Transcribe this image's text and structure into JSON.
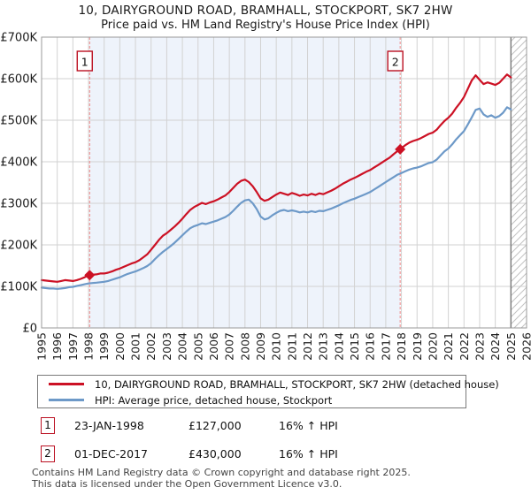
{
  "chart_data": {
    "type": "line",
    "title": "10, DAIRYGROUND ROAD, BRAMHALL, STOCKPORT, SK7 2HW",
    "subtitle": "Price paid vs. HM Land Registry's House Price Index (HPI)",
    "x_min": 1995,
    "x_max": 2026,
    "ylim": [
      0,
      700
    ],
    "unit": "GBP thousands",
    "grid": true,
    "legend_position": "bottom",
    "y_ticks": [
      [
        0,
        "£0"
      ],
      [
        100,
        "£100K"
      ],
      [
        200,
        "£200K"
      ],
      [
        300,
        "£300K"
      ],
      [
        400,
        "£400K"
      ],
      [
        500,
        "£500K"
      ],
      [
        600,
        "£600K"
      ],
      [
        700,
        "£700K"
      ]
    ],
    "x_ticks": [
      1995,
      1996,
      1997,
      1998,
      1999,
      2000,
      2001,
      2002,
      2003,
      2004,
      2005,
      2006,
      2007,
      2008,
      2009,
      2010,
      2011,
      2012,
      2013,
      2014,
      2015,
      2016,
      2017,
      2018,
      2019,
      2020,
      2021,
      2022,
      2023,
      2024,
      2025,
      2026
    ],
    "shaded_span": [
      1998.07,
      2017.92
    ],
    "hatch_span": [
      2025,
      2026
    ],
    "series": [
      {
        "name": "10, DAIRYGROUND ROAD, BRAMHALL, STOCKPORT, SK7 2HW (detached house)",
        "color": "#cc1124",
        "x_start": 1995,
        "x_step": 0.25,
        "values": [
          115,
          114,
          113,
          112,
          111,
          113,
          115,
          114,
          113,
          115,
          118,
          122,
          127,
          128,
          129,
          131,
          131,
          133,
          136,
          140,
          143,
          147,
          151,
          155,
          158,
          163,
          170,
          177,
          188,
          200,
          212,
          222,
          228,
          236,
          244,
          253,
          263,
          274,
          284,
          291,
          296,
          301,
          298,
          302,
          305,
          309,
          314,
          319,
          327,
          337,
          347,
          354,
          357,
          351,
          341,
          327,
          312,
          306,
          309,
          315,
          321,
          326,
          323,
          320,
          325,
          322,
          318,
          321,
          319,
          323,
          320,
          324,
          322,
          326,
          330,
          335,
          341,
          347,
          352,
          357,
          361,
          366,
          371,
          376,
          380,
          386,
          392,
          398,
          404,
          410,
          418,
          426,
          433,
          440,
          446,
          450,
          453,
          457,
          462,
          467,
          470,
          477,
          488,
          498,
          506,
          516,
          530,
          542,
          556,
          576,
          596,
          608,
          597,
          587,
          591,
          588,
          585,
          590,
          600,
          610,
          603
        ]
      },
      {
        "name": "HPI: Average price, detached house, Stockport",
        "color": "#6d99c8",
        "x_start": 1995,
        "x_step": 0.25,
        "values": [
          97,
          96,
          95,
          95,
          94,
          95,
          96,
          98,
          99,
          101,
          103,
          105,
          107,
          108,
          109,
          110,
          111,
          113,
          116,
          119,
          122,
          126,
          130,
          133,
          136,
          140,
          144,
          149,
          156,
          166,
          175,
          183,
          190,
          197,
          205,
          214,
          223,
          232,
          240,
          245,
          248,
          252,
          250,
          253,
          256,
          259,
          263,
          267,
          273,
          282,
          292,
          301,
          307,
          309,
          300,
          286,
          268,
          261,
          264,
          271,
          277,
          282,
          284,
          281,
          283,
          281,
          278,
          280,
          278,
          281,
          279,
          282,
          281,
          284,
          287,
          291,
          295,
          300,
          304,
          308,
          311,
          315,
          319,
          323,
          327,
          333,
          339,
          345,
          351,
          357,
          363,
          369,
          373,
          377,
          381,
          384,
          386,
          389,
          393,
          397,
          399,
          405,
          415,
          425,
          432,
          442,
          454,
          464,
          474,
          490,
          507,
          525,
          528,
          514,
          508,
          512,
          506,
          510,
          518,
          531,
          526
        ]
      }
    ],
    "markers": [
      {
        "label": "1",
        "year": 1998.07,
        "value": 127
      },
      {
        "label": "2",
        "year": 2017.92,
        "value": 430
      }
    ],
    "colors": {
      "grid": "#d2d2d2",
      "border": "#999999",
      "shade": "#eef3fb",
      "dashed_line": "#ef8585",
      "marker_box_border": "#bb1122",
      "hatch": "#c2c2c2",
      "hatch_edge": "#808080"
    }
  },
  "annotations": [
    {
      "num": "1",
      "date": "23-JAN-1998",
      "price": "£127,000",
      "change": "16% ↑ HPI"
    },
    {
      "num": "2",
      "date": "01-DEC-2017",
      "price": "£430,000",
      "change": "16% ↑ HPI"
    }
  ],
  "footer": {
    "line1": "Contains HM Land Registry data © Crown copyright and database right 2025.",
    "line2": "This data is licensed under the Open Government Licence v3.0."
  }
}
